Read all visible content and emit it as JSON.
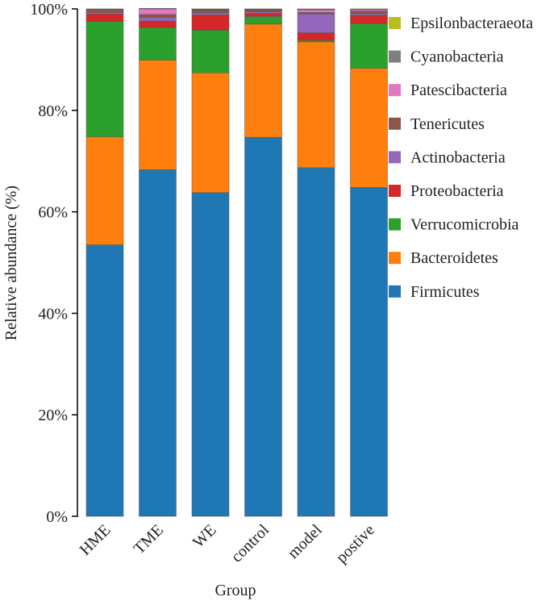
{
  "chart_data": {
    "type": "bar",
    "stacked": true,
    "title": "",
    "xlabel": "Group",
    "ylabel": "Relative abundance (%)",
    "ylim": [
      0,
      100
    ],
    "yticks": [
      "0%",
      "20%",
      "40%",
      "60%",
      "80%",
      "100%"
    ],
    "categories": [
      "HME",
      "TME",
      "WE",
      "control",
      "model",
      "postive"
    ],
    "legend_position": "right",
    "series": [
      {
        "name": "Firmicutes",
        "color": "#1f77b4",
        "values": [
          53.5,
          68.3,
          63.8,
          74.7,
          68.7,
          64.8
        ]
      },
      {
        "name": "Bacteroidetes",
        "color": "#ff7f0e",
        "values": [
          21.3,
          21.6,
          23.6,
          22.3,
          24.8,
          23.5
        ]
      },
      {
        "name": "Verrucomicrobia",
        "color": "#2ca02c",
        "values": [
          22.7,
          6.4,
          8.4,
          1.5,
          0.3,
          8.8
        ]
      },
      {
        "name": "Proteobacteria",
        "color": "#d62728",
        "values": [
          1.5,
          1.3,
          3.0,
          0.6,
          1.5,
          1.6
        ]
      },
      {
        "name": "Actinobacteria",
        "color": "#9467bd",
        "values": [
          0.3,
          0.7,
          0.4,
          0.3,
          3.7,
          0.3
        ]
      },
      {
        "name": "Tenericutes",
        "color": "#8c564b",
        "values": [
          0.6,
          0.6,
          0.6,
          0.4,
          0.3,
          0.6
        ]
      },
      {
        "name": "Patescibacteria",
        "color": "#e377c2",
        "values": [
          0.0,
          1.1,
          0.1,
          0.1,
          0.5,
          0.3
        ]
      },
      {
        "name": "Cyanobacteria",
        "color": "#7f7f7f",
        "values": [
          0.1,
          0.1,
          0.1,
          0.1,
          0.1,
          0.1
        ]
      },
      {
        "name": "Epsilonbacteraeota",
        "color": "#bcbd22",
        "values": [
          0.0,
          0.0,
          0.0,
          0.0,
          0.1,
          0.0
        ]
      }
    ]
  }
}
